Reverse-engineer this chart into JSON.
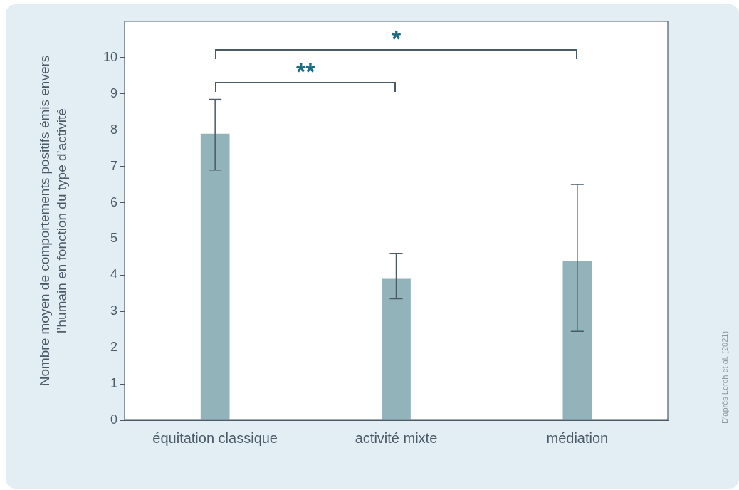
{
  "chart_data": {
    "type": "bar",
    "ylabel": "Nombre moyen de comportements positifs émis envers l’humain en fonction du type d’activité",
    "categories": [
      "équitation classique",
      "activité mixte",
      "médiation"
    ],
    "values": [
      7.9,
      3.9,
      4.4
    ],
    "errors": [
      [
        6.9,
        8.85
      ],
      [
        3.35,
        4.6
      ],
      [
        2.45,
        6.5
      ]
    ],
    "color": "#93b3bb",
    "ylim": [
      0,
      11
    ],
    "yticks": [
      0,
      1,
      2,
      3,
      4,
      5,
      6,
      7,
      8,
      9,
      10
    ],
    "grid": false,
    "legend": false,
    "annotations": [
      "**",
      "*",
      "D’après Lerch et al. (2021)"
    ]
  }
}
